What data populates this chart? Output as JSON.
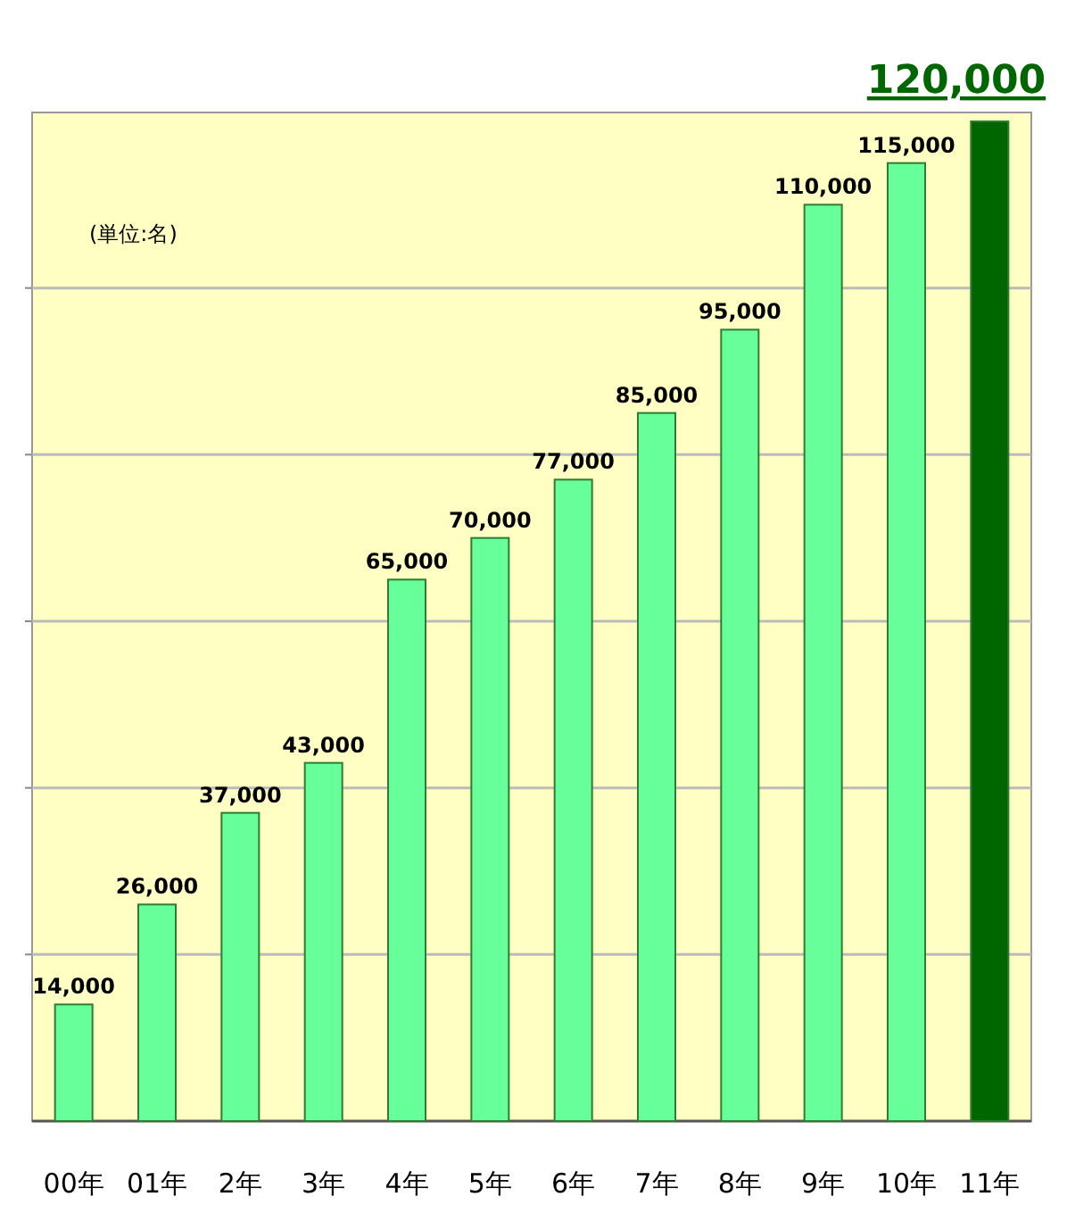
{
  "chart_data": {
    "type": "bar",
    "categories": [
      "00年",
      "01年",
      "2年",
      "3年",
      "4年",
      "5年",
      "6年",
      "7年",
      "8年",
      "9年",
      "10年",
      "11年"
    ],
    "values": [
      14000,
      26000,
      37000,
      43000,
      65000,
      70000,
      77000,
      85000,
      95000,
      110000,
      115000,
      120000
    ],
    "colors": [
      "#66ff99",
      "#66ff99",
      "#66ff99",
      "#66ff99",
      "#66ff99",
      "#66ff99",
      "#66ff99",
      "#66ff99",
      "#66ff99",
      "#66ff99",
      "#66ff99",
      "#006600"
    ],
    "value_labels": [
      "14,000",
      "26,000",
      "37,000",
      "43,000",
      "65,000",
      "70,000",
      "77,000",
      "85,000",
      "95,000",
      "110,000",
      "115,000",
      "120,000"
    ],
    "ylim": [
      0,
      120000
    ],
    "yticks": [
      {
        "value": 20000,
        "label": null
      },
      {
        "value": 40000,
        "label": null
      },
      {
        "value": 60000,
        "label": null
      },
      {
        "value": 80000,
        "label": null
      },
      {
        "value": 100000,
        "label": null
      }
    ],
    "grid": "y",
    "tick_labels": "x",
    "annotations": [
      "(単位:名)"
    ]
  }
}
